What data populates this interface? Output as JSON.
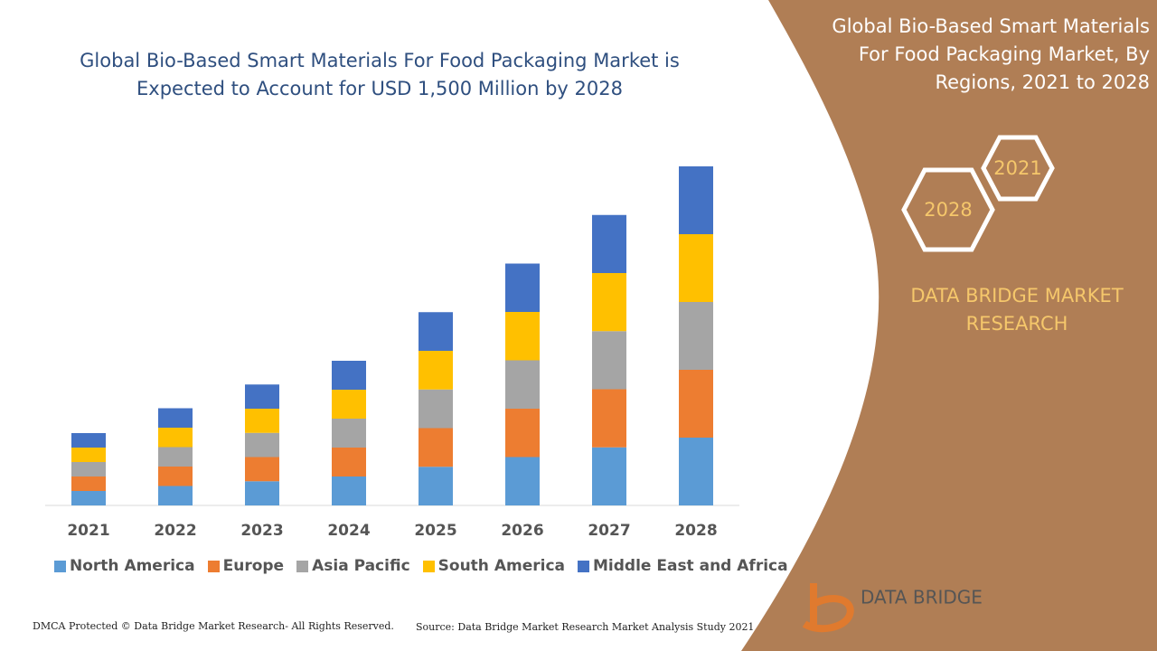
{
  "chart_data": {
    "type": "bar",
    "stacked": true,
    "title": "Global Bio-Based Smart Materials For Food Packaging Market is Expected to Account for USD 1,500 Million by 2028",
    "categories": [
      "2021",
      "2022",
      "2023",
      "2024",
      "2025",
      "2026",
      "2027",
      "2028"
    ],
    "series": [
      {
        "name": "North America",
        "color": "#5b9bd5",
        "values": [
          64,
          86,
          107,
          128,
          171,
          214,
          257,
          300
        ]
      },
      {
        "name": "Europe",
        "color": "#ed7d31",
        "values": [
          64,
          86,
          107,
          128,
          171,
          214,
          257,
          300
        ]
      },
      {
        "name": "Asia Pacific",
        "color": "#a5a5a5",
        "values": [
          64,
          86,
          107,
          128,
          171,
          214,
          257,
          300
        ]
      },
      {
        "name": "South America",
        "color": "#ffc000",
        "values": [
          64,
          86,
          107,
          128,
          171,
          214,
          257,
          300
        ]
      },
      {
        "name": "Middle East and Africa",
        "color": "#4472c4",
        "values": [
          64,
          86,
          107,
          128,
          171,
          214,
          257,
          300
        ]
      }
    ],
    "ylim": [
      0,
      1500
    ],
    "legend": "bottom"
  },
  "panel": {
    "title": "Global Bio-Based Smart Materials For Food Packaging Market, By Regions, 2021 to 2028",
    "hex_start": "2021",
    "hex_end": "2028",
    "brand": "DATA BRIDGE MARKET RESEARCH",
    "logo": "DATA BRIDGE"
  },
  "footer": {
    "dmca": "DMCA Protected © Data Bridge Market Research- All Rights Reserved.",
    "source": "Source: Data Bridge Market Research Market Analysis Study 2021"
  }
}
